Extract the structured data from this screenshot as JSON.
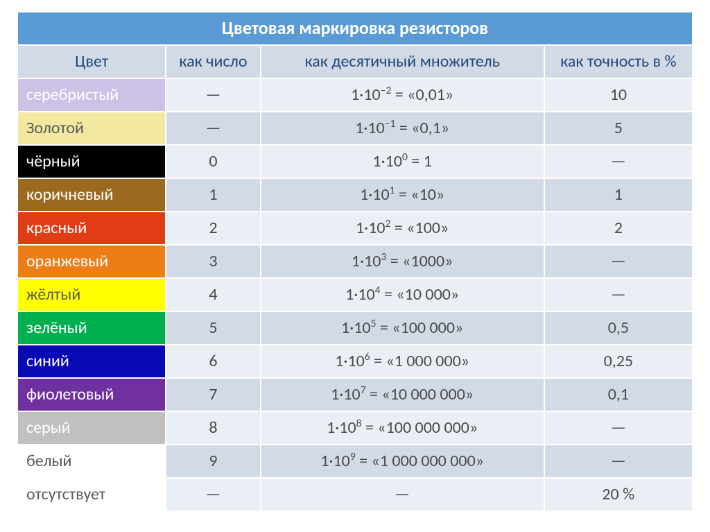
{
  "title": "Цветовая маркировка резисторов",
  "columns": {
    "color": "Цвет",
    "digit": "как число",
    "multiplier": "как десятичный множитель",
    "tolerance": "как точность в %"
  },
  "col_widths": [
    "22%",
    "14%",
    "42%",
    "22%"
  ],
  "alt_row_colors": [
    "#eaeef5",
    "#d2dae6"
  ],
  "border_color": "#ffffff",
  "title_bg": "#5b9bd5",
  "title_fg": "#ffffff",
  "header_bg": "#d2dae6",
  "header_fg": "#1f497d",
  "rows": [
    {
      "label": "серебристый",
      "bg": "#cdc2e6",
      "fg": "#ffffff",
      "digit": "—",
      "mult_base": "1·10",
      "mult_exp": "–2",
      "mult_tail": " = «0,01»",
      "tolerance": "10"
    },
    {
      "label": "Золотой",
      "bg": "#f2e8a0",
      "fg": "#595959",
      "digit": "—",
      "mult_base": "1·10",
      "mult_exp": "–1",
      "mult_tail": " = «0,1»",
      "tolerance": "5"
    },
    {
      "label": "чёрный",
      "bg": "#000000",
      "fg": "#ffffff",
      "digit": "0",
      "mult_base": "1·10",
      "mult_exp": "0",
      "mult_tail": " = 1",
      "tolerance": "—"
    },
    {
      "label": "коричневый",
      "bg": "#9c6a1f",
      "fg": "#ffffff",
      "digit": "1",
      "mult_base": "1·10",
      "mult_exp": "1",
      "mult_tail": " = «10»",
      "tolerance": "1"
    },
    {
      "label": "красный",
      "bg": "#e03c15",
      "fg": "#ffffff",
      "digit": "2",
      "mult_base": "1·10",
      "mult_exp": "2",
      "mult_tail": " = «100»",
      "tolerance": "2"
    },
    {
      "label": "оранжевый",
      "bg": "#ed7d16",
      "fg": "#ffffff",
      "digit": "3",
      "mult_base": "1·10",
      "mult_exp": "3",
      "mult_tail": " = «1000»",
      "tolerance": "—"
    },
    {
      "label": "жёлтый",
      "bg": "#ffff00",
      "fg": "#595959",
      "digit": "4",
      "mult_base": "1·10",
      "mult_exp": "4",
      "mult_tail": " = «10 000»",
      "tolerance": "—"
    },
    {
      "label": "зелёный",
      "bg": "#00b050",
      "fg": "#ffffff",
      "digit": "5",
      "mult_base": "1·10",
      "mult_exp": "5",
      "mult_tail": " = «100 000»",
      "tolerance": "0,5"
    },
    {
      "label": "синий",
      "bg": "#0909b5",
      "fg": "#ffffff",
      "digit": "6",
      "mult_base": "1·10",
      "mult_exp": "6",
      "mult_tail": " = «1 000 000»",
      "tolerance": "0,25"
    },
    {
      "label": "фиолетовый",
      "bg": "#7030a0",
      "fg": "#ffffff",
      "digit": "7",
      "mult_base": "1·10",
      "mult_exp": "7",
      "mult_tail": " = «10 000 000»",
      "tolerance": "0,1"
    },
    {
      "label": "серый",
      "bg": "#c0c0c0",
      "fg": "#ffffff",
      "digit": "8",
      "mult_base": "1·10",
      "mult_exp": "8",
      "mult_tail": " = «100 000 000»",
      "tolerance": "—"
    },
    {
      "label": "белый",
      "bg": "#ffffff",
      "fg": "#595959",
      "digit": "9",
      "mult_base": "1·10",
      "mult_exp": "9",
      "mult_tail": " = «1 000 000 000»",
      "tolerance": "—"
    },
    {
      "label": "отсутствует",
      "bg": "#ffffff",
      "fg": "#595959",
      "digit": "—",
      "mult_base": "—",
      "mult_exp": "",
      "mult_tail": "",
      "tolerance": "20 %"
    }
  ]
}
